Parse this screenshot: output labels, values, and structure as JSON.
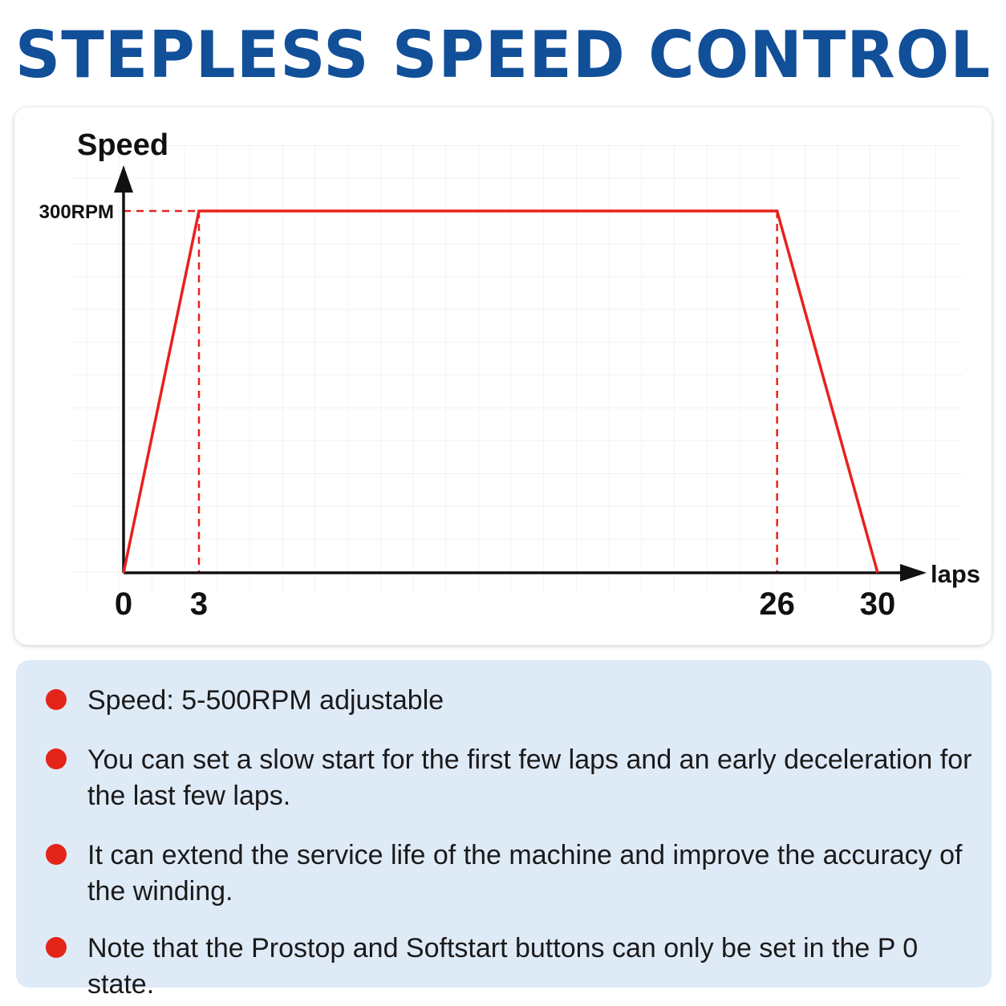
{
  "title": "STEPLESS SPEED CONTROL",
  "chart_data": {
    "type": "line",
    "ylabel": "Speed",
    "xlabel": "laps",
    "x_ticks": [
      "0",
      "3",
      "26",
      "30"
    ],
    "y_ticks": [
      "300RPM"
    ],
    "x": [
      0,
      3,
      26,
      30
    ],
    "series": [
      {
        "values": [
          0,
          300,
          300,
          0
        ]
      }
    ],
    "xlim": [
      0,
      30
    ],
    "ylim": [
      0,
      300
    ],
    "grid": true,
    "line_color": "#e8221c",
    "guide_lines": "dashed"
  },
  "notes": [
    "Speed: 5-500RPM adjustable",
    "You can set a slow start for the first few laps and an early deceleration for the last few laps.",
    "It can extend the service life of the machine and improve the accuracy of the winding.",
    "Note that the Prostop and Softstart buttons can only be set in the P 0 state."
  ],
  "colors": {
    "title": "#114f99",
    "bullet": "#e32419",
    "info_background": "#dfeaf7"
  }
}
